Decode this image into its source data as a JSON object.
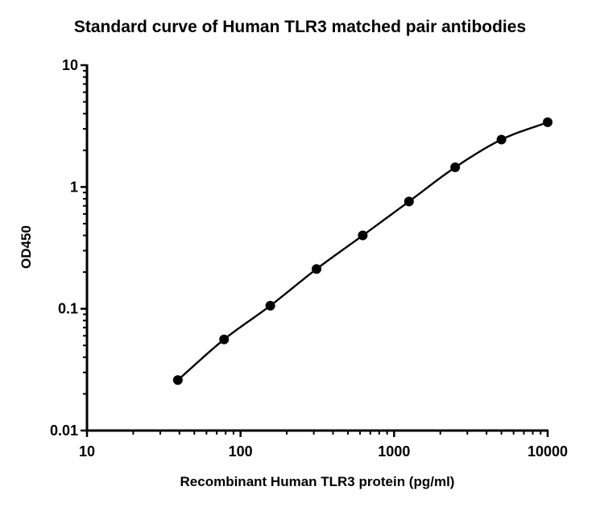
{
  "chart_data": {
    "type": "scatter",
    "title": "Standard curve of Human TLR3 matched pair antibodies",
    "xlabel": "Recombinant Human TLR3 protein (pg/ml)",
    "ylabel": "OD450",
    "x_scale": "log",
    "y_scale": "log",
    "xlim": [
      10,
      10000
    ],
    "ylim": [
      0.01,
      10
    ],
    "x_ticks": [
      "10",
      "100",
      "1000",
      "10000"
    ],
    "y_ticks": [
      "0.01",
      "0.1",
      "1",
      "10"
    ],
    "grid": false,
    "legend": "none",
    "curve_fit": "smooth fitted curve through points",
    "color": "#000000",
    "series": [
      {
        "x": [
          39.06,
          78.13,
          156.25,
          312.5,
          625,
          1250,
          2500,
          5000,
          10000
        ],
        "y": [
          0.026,
          0.056,
          0.106,
          0.212,
          0.4,
          0.76,
          1.45,
          2.45,
          3.4
        ]
      }
    ]
  }
}
